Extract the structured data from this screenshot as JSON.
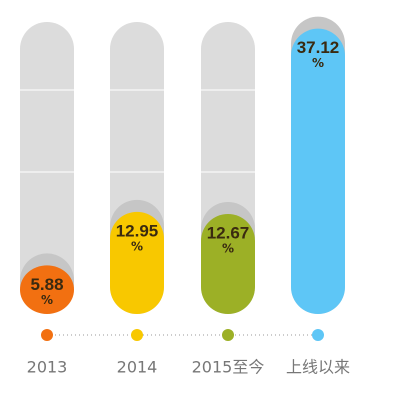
{
  "chart_data": {
    "type": "bar",
    "categories": [
      "2013",
      "2014",
      "2015至今",
      "上线以来"
    ],
    "values": [
      5.88,
      12.95,
      12.67,
      37.12
    ],
    "unit": "%",
    "colors": [
      "#f27011",
      "#f8c800",
      "#9cb026",
      "#5ec6f6"
    ],
    "ylim": [
      0,
      38
    ]
  }
}
